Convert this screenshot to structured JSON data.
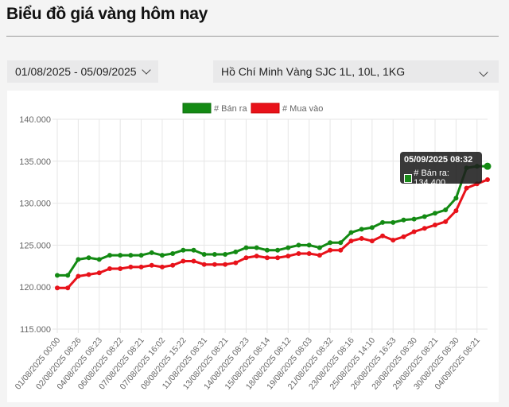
{
  "header": {
    "title": "Biểu đồ giá vàng hôm nay"
  },
  "filters": {
    "date_range": "01/08/2025 - 05/09/2025",
    "location": "Hồ Chí Minh Vàng SJC 1L, 10L, 1KG"
  },
  "tooltip": {
    "title": "05/09/2025 08:32",
    "label": "# Bán ra: 134.400"
  },
  "chart_data": {
    "type": "line",
    "title": "",
    "xlabel": "",
    "ylabel": "",
    "ylim": [
      115000,
      140000
    ],
    "y_ticks": [
      "115.000",
      "120.000",
      "125.000",
      "130.000",
      "135.000",
      "140.000"
    ],
    "grid": true,
    "legend": "top",
    "x_tick_labels": [
      "01/08/2025 00:00",
      "02/08/2025 08:26",
      "04/08/2025 08:23",
      "06/08/2025 08:22",
      "07/08/2025 08:21",
      "07/08/2025 16:02",
      "08/08/2025 15:22",
      "11/08/2025 08:31",
      "13/08/2025 08:21",
      "14/08/2025 08:23",
      "15/08/2025 08:14",
      "18/08/2025 08:12",
      "19/08/2025 08:03",
      "21/08/2025 08:32",
      "23/08/2025 08:16",
      "25/08/2025 14:10",
      "26/08/2025 16:53",
      "28/08/2025 08:30",
      "29/08/2025 08:21",
      "30/08/2025 08:30",
      "04/09/2025 08:21"
    ],
    "series": [
      {
        "name": "# Bán ra",
        "color": "#138a13",
        "values": [
          121400,
          121400,
          123300,
          123500,
          123300,
          123800,
          123800,
          123800,
          123800,
          124100,
          123800,
          124000,
          124400,
          124400,
          123900,
          123900,
          123900,
          124200,
          124700,
          124700,
          124400,
          124400,
          124700,
          125000,
          125000,
          124700,
          125300,
          125300,
          126500,
          126900,
          127100,
          127700,
          127700,
          128000,
          128100,
          128400,
          128800,
          129200,
          130600,
          134200,
          134400,
          134400
        ]
      },
      {
        "name": "# Mua vào",
        "color": "#e8121a",
        "values": [
          119900,
          119900,
          121300,
          121500,
          121700,
          122200,
          122200,
          122400,
          122400,
          122600,
          122400,
          122600,
          123100,
          123100,
          122700,
          122700,
          122700,
          122900,
          123500,
          123700,
          123500,
          123500,
          123700,
          124000,
          124000,
          123800,
          124400,
          124400,
          125500,
          125800,
          125500,
          126100,
          125600,
          126000,
          126600,
          127000,
          127400,
          127800,
          129100,
          131800,
          132300,
          132800
        ]
      }
    ]
  }
}
